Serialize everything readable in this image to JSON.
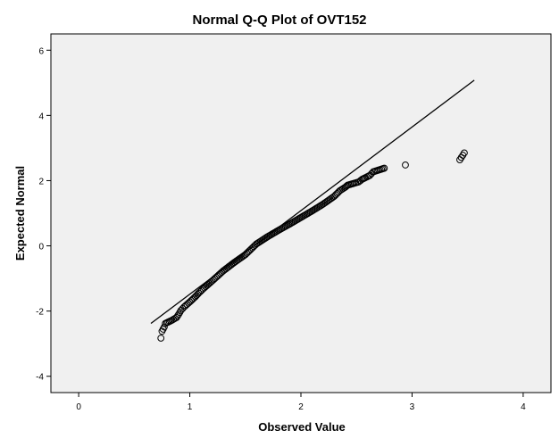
{
  "chart_data": {
    "type": "scatter",
    "title": "Normal Q-Q Plot of OVT152",
    "xlabel": "Observed Value",
    "ylabel": "Expected Normal",
    "xlim": [
      -0.25,
      4.25
    ],
    "ylim": [
      -4.5,
      6.5
    ],
    "xticks": [
      "0",
      "1",
      "2",
      "3",
      "4"
    ],
    "yticks": [
      "-4",
      "-2",
      "0",
      "2",
      "4",
      "6"
    ],
    "grid": false,
    "colors": {
      "plot_background": "#f0f0f0",
      "points": "#000000",
      "reference_line": "#000000"
    },
    "reference_line": {
      "x": [
        0.65,
        3.56
      ],
      "y": [
        -2.38,
        5.08
      ]
    },
    "points": {
      "x": [
        0.74,
        0.75,
        0.77,
        0.78,
        0.84,
        0.88,
        0.9,
        0.92,
        0.95,
        1.0,
        1.05,
        1.08,
        1.12,
        1.2,
        1.3,
        1.4,
        1.5,
        1.6,
        1.7,
        1.8,
        1.9,
        2.0,
        2.1,
        2.2,
        2.3,
        2.35,
        2.4,
        2.42,
        2.48,
        2.52,
        2.55,
        2.58,
        2.62,
        2.65,
        2.75,
        2.94,
        3.43,
        3.47
      ],
      "y": [
        -2.83,
        -2.62,
        -2.49,
        -2.38,
        -2.28,
        -2.2,
        -2.1,
        -1.98,
        -1.87,
        -1.72,
        -1.56,
        -1.45,
        -1.32,
        -1.08,
        -0.77,
        -0.51,
        -0.27,
        0.06,
        0.28,
        0.48,
        0.67,
        0.87,
        1.07,
        1.28,
        1.52,
        1.69,
        1.8,
        1.86,
        1.92,
        1.96,
        2.04,
        2.09,
        2.16,
        2.27,
        2.38,
        2.48,
        2.64,
        2.85
      ]
    }
  }
}
